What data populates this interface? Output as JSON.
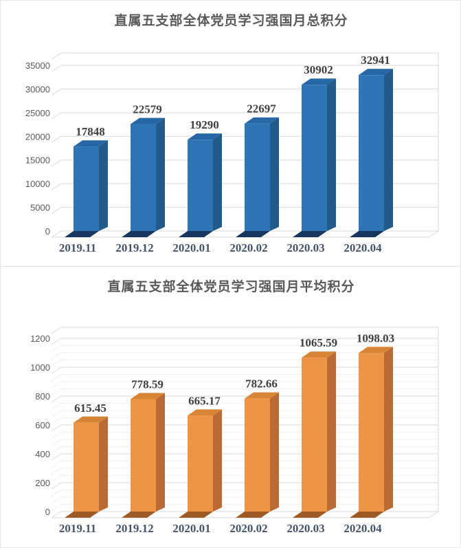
{
  "chart_data": [
    {
      "type": "bar",
      "title": "直属五支部全体党员学习强国月总积分",
      "categories": [
        "2019.11",
        "2019.12",
        "2020.01",
        "2020.02",
        "2020.03",
        "2020.04"
      ],
      "values": [
        17848,
        22579,
        19290,
        22697,
        30902,
        32941
      ],
      "value_labels": [
        "17848",
        "22579",
        "19290",
        "22697",
        "30902",
        "32941"
      ],
      "ylabel": "",
      "xlabel": "",
      "ylim": [
        0,
        35000
      ],
      "y_ticks": [
        "0",
        "5000",
        "10000",
        "15000",
        "20000",
        "25000",
        "30000",
        "35000"
      ],
      "minor_per_major": 1,
      "legend": "none",
      "grid": "on",
      "style": "3d-column",
      "colors": {
        "front": "#2e75b6",
        "side": "#235a8c",
        "top": "#2767a6",
        "bottom": "#17375e",
        "grid_major": "#d9d9d9",
        "grid_minor": "#ededed",
        "value_label": "#3f3f3f",
        "x_label": "#44546a",
        "y_label": "#595959"
      }
    },
    {
      "type": "bar",
      "title": "直属五支部全体党员学习强国月平均积分",
      "categories": [
        "2019.11",
        "2019.12",
        "2020.01",
        "2020.02",
        "2020.03",
        "2020.04"
      ],
      "values": [
        615.45,
        778.59,
        665.17,
        782.66,
        1065.59,
        1098.03
      ],
      "value_labels": [
        "615.45",
        "778.59",
        "665.17",
        "782.66",
        "1065.59",
        "1098.03"
      ],
      "ylabel": "",
      "xlabel": "",
      "ylim": [
        0,
        1200
      ],
      "y_ticks": [
        "0",
        "200",
        "400",
        "600",
        "800",
        "1000",
        "1200"
      ],
      "minor_per_major": 4,
      "legend": "none",
      "grid": "on",
      "style": "3d-column",
      "colors": {
        "front": "#ed9445",
        "side": "#b96b33",
        "top": "#d88435",
        "bottom": "#9e5a22",
        "grid_major": "#d9d9d9",
        "grid_minor": "#f0efed",
        "value_label": "#3f3f3f",
        "x_label": "#44546a",
        "y_label": "#595959"
      }
    }
  ]
}
